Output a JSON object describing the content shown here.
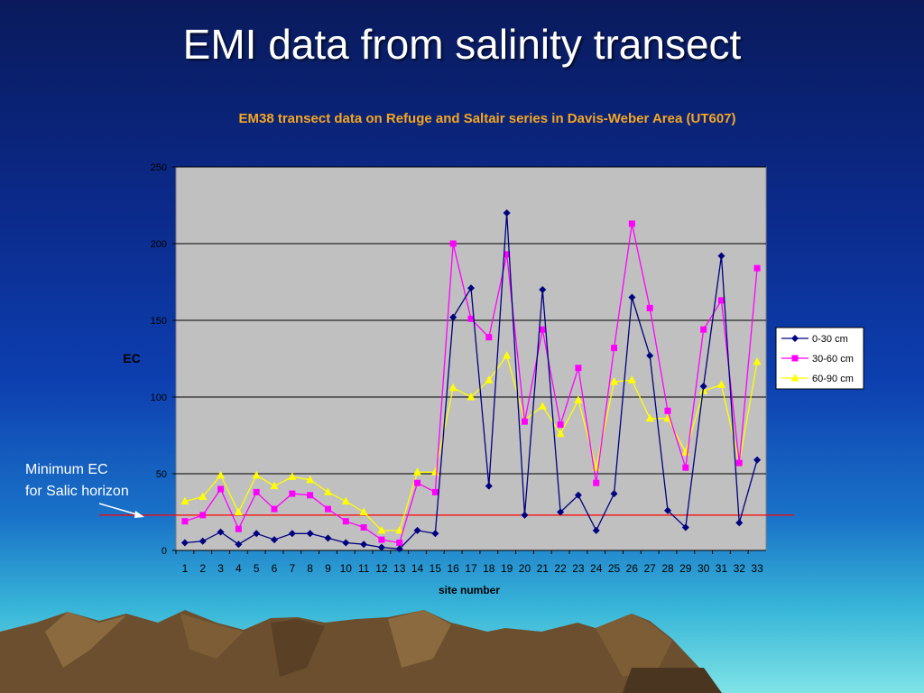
{
  "slide": {
    "title": "EMI data from salinity transect",
    "annotation_line1": "Minimum EC",
    "annotation_line2": "for Salic horizon"
  },
  "colors": {
    "plot_background": "#c0c0c0",
    "title_color": "#f5a623",
    "series_0_30": "#000080",
    "series_30_60": "#ff00ff",
    "series_60_90": "#ffff00",
    "threshold_line": "#ff0000"
  },
  "chart_data": {
    "type": "line",
    "title": "EM38 transect data on Refuge and Saltair series in Davis-Weber Area (UT607)",
    "xlabel": "site number",
    "ylabel": "EC",
    "ylim": [
      0,
      250
    ],
    "yticks": [
      0,
      50,
      100,
      150,
      200,
      250
    ],
    "grid": "horizontal",
    "legend_position": "right",
    "categories": [
      "1",
      "2",
      "3",
      "4",
      "5",
      "6",
      "7",
      "8",
      "9",
      "10",
      "11",
      "12",
      "13",
      "14",
      "15",
      "16",
      "17",
      "18",
      "19",
      "20",
      "21",
      "22",
      "23",
      "24",
      "25",
      "26",
      "27",
      "28",
      "29",
      "30",
      "31",
      "32",
      "33"
    ],
    "series": [
      {
        "name": "0-30 cm",
        "marker": "diamond",
        "values": [
          5,
          6,
          12,
          4,
          11,
          7,
          11,
          11,
          8,
          5,
          4,
          2,
          1,
          13,
          11,
          152,
          171,
          42,
          220,
          23,
          170,
          25,
          36,
          13,
          37,
          165,
          127,
          26,
          15,
          107,
          192,
          18,
          59
        ]
      },
      {
        "name": "30-60 cm",
        "marker": "square",
        "values": [
          19,
          23,
          40,
          14,
          38,
          27,
          37,
          36,
          27,
          19,
          15,
          7,
          5,
          44,
          38,
          200,
          151,
          139,
          193,
          84,
          144,
          82,
          119,
          44,
          132,
          213,
          158,
          91,
          54,
          144,
          163,
          57,
          184
        ]
      },
      {
        "name": "60-90 cm",
        "marker": "triangle",
        "values": [
          32,
          35,
          49,
          25,
          49,
          42,
          48,
          46,
          38,
          32,
          25,
          13,
          13,
          51,
          51,
          106,
          100,
          111,
          127,
          85,
          94,
          76,
          98,
          54,
          110,
          111,
          86,
          86,
          64,
          104,
          108,
          57,
          123
        ]
      }
    ],
    "threshold": {
      "value": 23
    }
  }
}
